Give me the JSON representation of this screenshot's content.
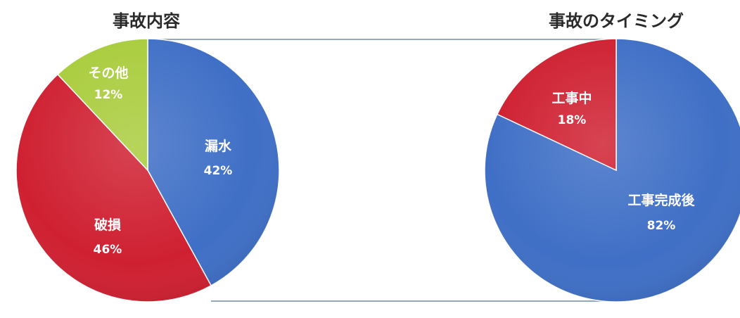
{
  "colors": {
    "blue": "#3f6fc6",
    "red": "#cf2031",
    "green": "#a9cc3c",
    "connector": "#6e89a8"
  },
  "chart_data": [
    {
      "type": "pie",
      "title": "事故内容",
      "slices": [
        {
          "label": "漏水",
          "value": 42,
          "value_label": "42%",
          "color": "blue"
        },
        {
          "label": "破損",
          "value": 46,
          "value_label": "46%",
          "color": "red"
        },
        {
          "label": "その他",
          "value": 12,
          "value_label": "12%",
          "color": "green"
        }
      ]
    },
    {
      "type": "pie",
      "title": "事故のタイミング",
      "slices": [
        {
          "label": "工事完成後",
          "value": 82,
          "value_label": "82%",
          "color": "blue"
        },
        {
          "label": "工事中",
          "value": 18,
          "value_label": "18%",
          "color": "red"
        }
      ]
    }
  ]
}
